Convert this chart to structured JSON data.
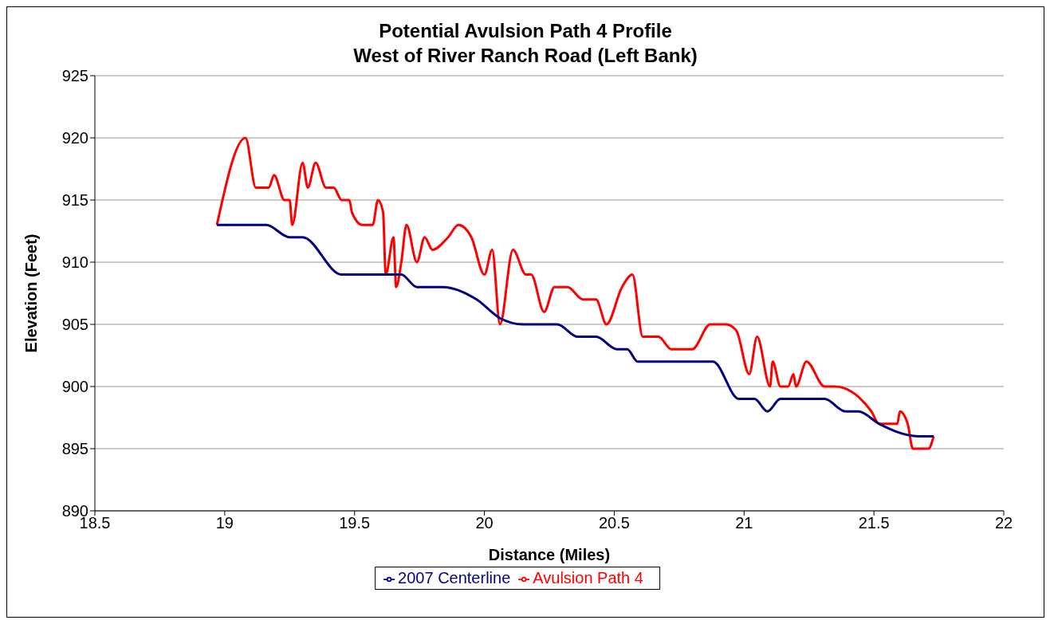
{
  "chart_data": {
    "type": "line",
    "title": "Potential Avulsion Path 4 Profile\nWest of River Ranch Road (Left Bank)",
    "xlabel": "Distance (Miles)",
    "ylabel": "Elevation (Feet)",
    "xlim": [
      18.5,
      22
    ],
    "xticks": [
      18.5,
      19,
      19.5,
      20,
      20.5,
      21,
      21.5,
      22
    ],
    "ylim": [
      890,
      925
    ],
    "yticks": [
      890,
      895,
      900,
      905,
      910,
      915,
      920,
      925
    ],
    "grid": "y",
    "legend": "bottom",
    "marker": "none",
    "line_style": "solid",
    "series": [
      {
        "name": "Avulsion Path 4",
        "color": "#ff0000",
        "x": [
          18.97,
          19.08,
          19.12,
          19.17,
          19.19,
          19.23,
          19.25,
          19.26,
          19.3,
          19.32,
          19.35,
          19.39,
          19.42,
          19.45,
          19.48,
          19.49,
          19.53,
          19.57,
          19.59,
          19.61,
          19.62,
          19.65,
          19.66,
          19.68,
          19.7,
          19.74,
          19.77,
          19.8,
          19.86,
          19.9,
          19.95,
          20,
          20.03,
          20.06,
          20.11,
          20.16,
          20.18,
          20.23,
          20.27,
          20.32,
          20.38,
          20.43,
          20.47,
          20.53,
          20.57,
          20.61,
          20.67,
          20.72,
          20.8,
          20.87,
          20.93,
          20.97,
          21.02,
          21.05,
          21.1,
          21.11,
          21.14,
          21.17,
          21.19,
          21.2,
          21.24,
          21.31,
          21.35,
          21.49,
          21.52,
          21.59,
          21.6,
          21.63,
          21.65,
          21.68,
          21.71,
          21.73
        ],
        "values": [
          913,
          920,
          916,
          916,
          917,
          915,
          915,
          913,
          918,
          916,
          918,
          916,
          916,
          915,
          915,
          914,
          913,
          913,
          915,
          914,
          909,
          912,
          908,
          910,
          913,
          910,
          912,
          911,
          912,
          913,
          912,
          909,
          911,
          905,
          911,
          909,
          909,
          906,
          908,
          908,
          907,
          907,
          905,
          908,
          909,
          904,
          904,
          903,
          903,
          905,
          905,
          904.5,
          901,
          904,
          900,
          902,
          900,
          900,
          901,
          900,
          902,
          900,
          900,
          898,
          897,
          897,
          898,
          897,
          895,
          895,
          895,
          896
        ]
      },
      {
        "name": "2007 Centerline",
        "color": "#000080",
        "x": [
          18.97,
          19.12,
          19.16,
          19.25,
          19.3,
          19.45,
          19.5,
          19.68,
          19.74,
          19.84,
          19.97,
          20.06,
          20.15,
          20.28,
          20.36,
          20.43,
          20.51,
          20.55,
          20.59,
          20.68,
          20.85,
          20.88,
          20.98,
          21.04,
          21.09,
          21.14,
          21.28,
          21.31,
          21.39,
          21.44,
          21.52,
          21.67,
          21.73
        ],
        "values": [
          913,
          913,
          913,
          912,
          912,
          909,
          909,
          909,
          908,
          908,
          907,
          905.5,
          905,
          905,
          904,
          904,
          903,
          903,
          902,
          902,
          902,
          902,
          899,
          899,
          898,
          899,
          899,
          899,
          898,
          898,
          897,
          896,
          896
        ]
      }
    ]
  }
}
